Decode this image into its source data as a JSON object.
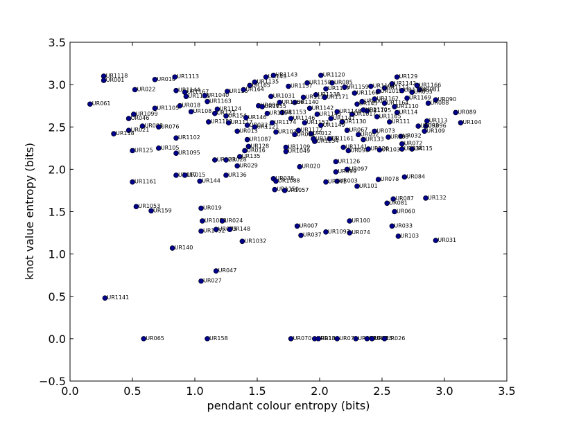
{
  "chart_data": {
    "type": "scatter",
    "xlabel": "pendant colour entropy (bits)",
    "ylabel": "knot value entropy (bits)",
    "xlim": [
      0.0,
      3.5
    ],
    "ylim": [
      -0.5,
      3.5
    ],
    "xticks": [
      "0.0",
      "0.5",
      "1.0",
      "1.5",
      "2.0",
      "2.5",
      "3.0",
      "3.5"
    ],
    "yticks": [
      "−0.5",
      "0.0",
      "0.5",
      "1.0",
      "1.5",
      "2.0",
      "2.5",
      "3.0",
      "3.5"
    ],
    "grid": false,
    "marker_color": "#00008b",
    "points": [
      {
        "label": "UR1118",
        "x": 0.27,
        "y": 3.1
      },
      {
        "label": "UR001",
        "x": 0.27,
        "y": 3.05
      },
      {
        "label": "UR061",
        "x": 0.16,
        "y": 2.77
      },
      {
        "label": "UR022",
        "x": 0.52,
        "y": 2.94
      },
      {
        "label": "UR010",
        "x": 0.68,
        "y": 3.06
      },
      {
        "label": "UR1113",
        "x": 0.84,
        "y": 3.09
      },
      {
        "label": "UR1099",
        "x": 0.51,
        "y": 2.65
      },
      {
        "label": "UR046",
        "x": 0.47,
        "y": 2.6
      },
      {
        "label": "UR008",
        "x": 0.58,
        "y": 2.51
      },
      {
        "label": "UR021",
        "x": 0.47,
        "y": 2.46
      },
      {
        "label": "UR118",
        "x": 0.35,
        "y": 2.42
      },
      {
        "label": "UR1105",
        "x": 0.68,
        "y": 2.72
      },
      {
        "label": "UR076",
        "x": 0.71,
        "y": 2.5
      },
      {
        "label": "UR018",
        "x": 0.88,
        "y": 2.75
      },
      {
        "label": "UR1102",
        "x": 0.85,
        "y": 2.37
      },
      {
        "label": "UR125",
        "x": 0.5,
        "y": 2.22
      },
      {
        "label": "UR105",
        "x": 0.71,
        "y": 2.25
      },
      {
        "label": "UR1095",
        "x": 0.85,
        "y": 2.19
      },
      {
        "label": "UR1161",
        "x": 0.5,
        "y": 1.85
      },
      {
        "label": "UR017",
        "x": 0.85,
        "y": 1.93
      },
      {
        "label": "UR015",
        "x": 0.92,
        "y": 1.93
      },
      {
        "label": "UR144",
        "x": 1.04,
        "y": 1.86
      },
      {
        "label": "UR1053",
        "x": 0.53,
        "y": 1.56
      },
      {
        "label": "UR159",
        "x": 0.65,
        "y": 1.51
      },
      {
        "label": "UR019",
        "x": 1.05,
        "y": 1.54
      },
      {
        "label": "UR1058",
        "x": 1.06,
        "y": 1.39
      },
      {
        "label": "UR024",
        "x": 1.22,
        "y": 1.39
      },
      {
        "label": "UR1052",
        "x": 1.05,
        "y": 1.27
      },
      {
        "label": "UR075",
        "x": 1.17,
        "y": 1.29
      },
      {
        "label": "UR148",
        "x": 1.28,
        "y": 1.29
      },
      {
        "label": "UR140",
        "x": 0.82,
        "y": 1.07
      },
      {
        "label": "UR1032",
        "x": 1.38,
        "y": 1.15
      },
      {
        "label": "UR047",
        "x": 1.17,
        "y": 0.8
      },
      {
        "label": "UR027",
        "x": 1.05,
        "y": 0.68
      },
      {
        "label": "UR1141",
        "x": 0.28,
        "y": 0.48
      },
      {
        "label": "UR065",
        "x": 0.59,
        "y": 0.0
      },
      {
        "label": "UR158",
        "x": 1.1,
        "y": 0.0
      },
      {
        "label": "UR1144",
        "x": 0.85,
        "y": 2.93
      },
      {
        "label": "UR1167",
        "x": 0.92,
        "y": 2.91
      },
      {
        "label": "UR1101",
        "x": 0.93,
        "y": 2.86
      },
      {
        "label": "UR1040",
        "x": 1.08,
        "y": 2.87
      },
      {
        "label": "UR116",
        "x": 1.26,
        "y": 2.92
      },
      {
        "label": "UR1163",
        "x": 1.1,
        "y": 2.8
      },
      {
        "label": "UR108",
        "x": 0.97,
        "y": 2.68
      },
      {
        "label": "UR1124",
        "x": 1.18,
        "y": 2.71
      },
      {
        "label": "UR127",
        "x": 1.16,
        "y": 2.66
      },
      {
        "label": "UR154",
        "x": 1.25,
        "y": 2.63
      },
      {
        "label": "UR1151",
        "x": 1.11,
        "y": 2.56
      },
      {
        "label": "UR1117",
        "x": 1.27,
        "y": 2.55
      },
      {
        "label": "UR013",
        "x": 1.34,
        "y": 2.45
      },
      {
        "label": "UR1087",
        "x": 1.42,
        "y": 2.35
      },
      {
        "label": "UR128",
        "x": 1.43,
        "y": 2.27
      },
      {
        "label": "UR016",
        "x": 1.4,
        "y": 2.22
      },
      {
        "label": "UR135",
        "x": 1.36,
        "y": 2.15
      },
      {
        "label": "UR023",
        "x": 1.16,
        "y": 2.11
      },
      {
        "label": "UR028",
        "x": 1.25,
        "y": 2.11
      },
      {
        "label": "UR029",
        "x": 1.34,
        "y": 2.04
      },
      {
        "label": "UR136",
        "x": 1.25,
        "y": 1.93
      },
      {
        "label": "UR1135",
        "x": 1.48,
        "y": 3.03
      },
      {
        "label": "UR165",
        "x": 1.44,
        "y": 2.99
      },
      {
        "label": "UR164",
        "x": 1.39,
        "y": 2.94
      },
      {
        "label": "UR145",
        "x": 1.57,
        "y": 3.09
      },
      {
        "label": "UR1143",
        "x": 1.63,
        "y": 3.11
      },
      {
        "label": "UR1031",
        "x": 1.61,
        "y": 2.86
      },
      {
        "label": "UR006",
        "x": 1.51,
        "y": 2.75
      },
      {
        "label": "UR146",
        "x": 1.41,
        "y": 2.61
      },
      {
        "label": "UR022b",
        "x": 1.42,
        "y": 2.52
      },
      {
        "label": "UR1121",
        "x": 1.48,
        "y": 2.5
      },
      {
        "label": "UR1030",
        "x": 1.65,
        "y": 2.44
      },
      {
        "label": "UR1109",
        "x": 1.73,
        "y": 2.26
      },
      {
        "label": "UR1049",
        "x": 1.73,
        "y": 2.21
      },
      {
        "label": "UR038",
        "x": 1.63,
        "y": 1.89
      },
      {
        "label": "UR1088",
        "x": 1.65,
        "y": 1.86
      },
      {
        "label": "UR1150",
        "x": 1.64,
        "y": 1.76
      },
      {
        "label": "UR1057",
        "x": 1.72,
        "y": 1.75
      },
      {
        "label": "UR020",
        "x": 1.84,
        "y": 2.03
      },
      {
        "label": "UR1120",
        "x": 2.01,
        "y": 3.11
      },
      {
        "label": "UR085",
        "x": 2.1,
        "y": 3.02
      },
      {
        "label": "UR012",
        "x": 1.93,
        "y": 2.42
      },
      {
        "label": "UR1254",
        "x": 1.96,
        "y": 2.33
      },
      {
        "label": "UR061b",
        "x": 1.8,
        "y": 2.41
      },
      {
        "label": "UR1126",
        "x": 2.13,
        "y": 2.09
      },
      {
        "label": "UR097",
        "x": 2.22,
        "y": 2.0
      },
      {
        "label": "UR099",
        "x": 2.13,
        "y": 1.97
      },
      {
        "label": "UR003",
        "x": 2.14,
        "y": 1.86
      },
      {
        "label": "UR141",
        "x": 2.05,
        "y": 1.85
      },
      {
        "label": "UR101",
        "x": 2.3,
        "y": 1.8
      },
      {
        "label": "UR098",
        "x": 2.23,
        "y": 2.22
      },
      {
        "label": "UR1141b",
        "x": 2.19,
        "y": 2.26
      },
      {
        "label": "UR067",
        "x": 2.22,
        "y": 2.46
      },
      {
        "label": "UR1161b",
        "x": 2.08,
        "y": 2.36
      },
      {
        "label": "UR1130",
        "x": 2.18,
        "y": 2.56
      },
      {
        "label": "UR052",
        "x": 2.31,
        "y": 2.41
      },
      {
        "label": "UR133",
        "x": 2.35,
        "y": 2.35
      },
      {
        "label": "UR073",
        "x": 2.44,
        "y": 2.45
      },
      {
        "label": "UR126",
        "x": 2.39,
        "y": 2.24
      },
      {
        "label": "UR1033",
        "x": 2.48,
        "y": 2.23
      },
      {
        "label": "UR078",
        "x": 2.47,
        "y": 1.88
      },
      {
        "label": "UR084",
        "x": 2.68,
        "y": 1.91
      },
      {
        "label": "UR087",
        "x": 2.59,
        "y": 1.65
      },
      {
        "label": "UR081",
        "x": 2.54,
        "y": 1.6
      },
      {
        "label": "UR060",
        "x": 2.6,
        "y": 1.5
      },
      {
        "label": "UR132",
        "x": 2.85,
        "y": 1.66
      },
      {
        "label": "UR100",
        "x": 2.24,
        "y": 1.39
      },
      {
        "label": "UR074",
        "x": 2.24,
        "y": 1.25
      },
      {
        "label": "UR1097",
        "x": 2.05,
        "y": 1.26
      },
      {
        "label": "UR007",
        "x": 1.82,
        "y": 1.33
      },
      {
        "label": "UR037",
        "x": 1.85,
        "y": 1.22
      },
      {
        "label": "UR033",
        "x": 2.58,
        "y": 1.33
      },
      {
        "label": "UR103",
        "x": 2.63,
        "y": 1.21
      },
      {
        "label": "UR031",
        "x": 2.93,
        "y": 1.16
      },
      {
        "label": "UR070",
        "x": 1.77,
        "y": 0.0
      },
      {
        "label": "UR018b",
        "x": 1.96,
        "y": 0.0
      },
      {
        "label": "UR134",
        "x": 1.99,
        "y": 0.0
      },
      {
        "label": "UR071",
        "x": 2.14,
        "y": 0.0
      },
      {
        "label": "UR082",
        "x": 2.29,
        "y": 0.0
      },
      {
        "label": "UR062",
        "x": 2.38,
        "y": 0.0
      },
      {
        "label": "UR025",
        "x": 2.42,
        "y": 0.0
      },
      {
        "label": "UR026",
        "x": 2.52,
        "y": 0.0
      },
      {
        "label": "UR129",
        "x": 2.62,
        "y": 3.09
      },
      {
        "label": "UR1166",
        "x": 2.78,
        "y": 2.99
      },
      {
        "label": "UR081b",
        "x": 2.8,
        "y": 2.94
      },
      {
        "label": "UR095",
        "x": 2.74,
        "y": 2.91
      },
      {
        "label": "UR090",
        "x": 2.93,
        "y": 2.82
      },
      {
        "label": "UR088",
        "x": 2.87,
        "y": 2.78
      },
      {
        "label": "UR089",
        "x": 3.09,
        "y": 2.67
      },
      {
        "label": "UR104",
        "x": 3.13,
        "y": 2.55
      },
      {
        "label": "UR113",
        "x": 2.86,
        "y": 2.57
      },
      {
        "label": "UR096",
        "x": 2.85,
        "y": 2.51
      },
      {
        "label": "UR109",
        "x": 2.84,
        "y": 2.45
      },
      {
        "label": "UR093",
        "x": 2.79,
        "y": 2.51
      },
      {
        "label": "UR111",
        "x": 2.56,
        "y": 2.56
      },
      {
        "label": "UR114",
        "x": 2.62,
        "y": 2.67
      },
      {
        "label": "UR032",
        "x": 2.65,
        "y": 2.39
      },
      {
        "label": "UR072",
        "x": 2.66,
        "y": 2.3
      },
      {
        "label": "UR115",
        "x": 2.74,
        "y": 2.24
      },
      {
        "label": "UR034",
        "x": 2.66,
        "y": 2.24
      },
      {
        "label": "UR009",
        "x": 2.55,
        "y": 2.38
      },
      {
        "label": "UR145b",
        "x": 2.3,
        "y": 2.77
      },
      {
        "label": "UR1110",
        "x": 2.6,
        "y": 2.74
      },
      {
        "label": "UR1112",
        "x": 2.52,
        "y": 2.96
      },
      {
        "label": "UR1142",
        "x": 2.58,
        "y": 3.01
      },
      {
        "label": "UR1104",
        "x": 2.41,
        "y": 2.98
      },
      {
        "label": "UR1019",
        "x": 2.47,
        "y": 2.92
      },
      {
        "label": "UR1007",
        "x": 2.34,
        "y": 2.8
      },
      {
        "label": "UR1017",
        "x": 2.26,
        "y": 2.65
      },
      {
        "label": "UR1125",
        "x": 2.38,
        "y": 2.69
      },
      {
        "label": "UR1137",
        "x": 2.05,
        "y": 2.95
      },
      {
        "label": "UR1138",
        "x": 1.97,
        "y": 2.88
      },
      {
        "label": "UR1139",
        "x": 1.87,
        "y": 2.85
      },
      {
        "label": "UR1140",
        "x": 1.8,
        "y": 2.79
      },
      {
        "label": "UR1142b",
        "x": 1.92,
        "y": 2.72
      },
      {
        "label": "UR1145",
        "x": 1.98,
        "y": 2.65
      },
      {
        "label": "UR1146",
        "x": 1.77,
        "y": 2.6
      },
      {
        "label": "UR1147",
        "x": 2.09,
        "y": 2.6
      },
      {
        "label": "UR1148",
        "x": 2.14,
        "y": 2.68
      },
      {
        "label": "UR1149",
        "x": 2.01,
        "y": 2.52
      },
      {
        "label": "UR1152",
        "x": 1.88,
        "y": 2.55
      },
      {
        "label": "UR1153",
        "x": 1.7,
        "y": 2.67
      },
      {
        "label": "UR1154",
        "x": 1.58,
        "y": 2.66
      },
      {
        "label": "UR1155",
        "x": 1.54,
        "y": 2.74
      },
      {
        "label": "UR1156",
        "x": 1.68,
        "y": 2.79
      },
      {
        "label": "UR1157",
        "x": 1.75,
        "y": 2.98
      },
      {
        "label": "UR1158",
        "x": 1.9,
        "y": 3.02
      },
      {
        "label": "UR1159",
        "x": 2.2,
        "y": 2.97
      },
      {
        "label": "UR1160",
        "x": 2.28,
        "y": 2.9
      },
      {
        "label": "UR1162",
        "x": 2.44,
        "y": 2.83
      },
      {
        "label": "UR1164",
        "x": 2.52,
        "y": 2.78
      },
      {
        "label": "UR1165",
        "x": 2.46,
        "y": 2.62
      },
      {
        "label": "UR1168",
        "x": 2.66,
        "y": 2.93
      },
      {
        "label": "UR1169",
        "x": 2.7,
        "y": 2.84
      },
      {
        "label": "UR1170",
        "x": 2.35,
        "y": 2.7
      },
      {
        "label": "UR1171",
        "x": 2.04,
        "y": 2.85
      },
      {
        "label": "UR1172",
        "x": 1.83,
        "y": 2.46
      },
      {
        "label": "UR1173",
        "x": 1.95,
        "y": 2.36
      },
      {
        "label": "UR1174",
        "x": 1.62,
        "y": 2.55
      }
    ]
  }
}
